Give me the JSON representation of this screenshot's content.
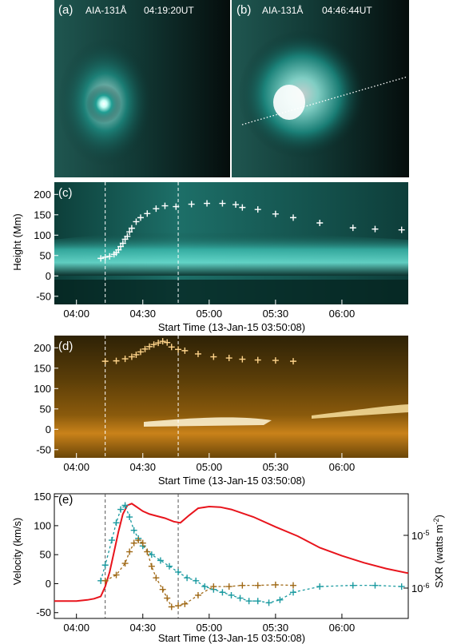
{
  "panel_a": {
    "letter": "(a)",
    "instrument": "AIA-131Å",
    "time": "04:19:20UT"
  },
  "panel_b": {
    "letter": "(b)",
    "instrument": "AIA-131Å",
    "time": "04:46:44UT"
  },
  "colors": {
    "aia131": "#38d6c8",
    "aia94": "#f2a23a",
    "red": "#e8141c",
    "teal": "#1a9aa0",
    "brown": "#a06a18"
  },
  "chart_data": [
    {
      "type": "scatter",
      "panel": "(c)",
      "ylabel": "Height (Mm)",
      "xlabel": "Start Time (13-Jan-15 03:50:08)",
      "xlim": [
        "03:50",
        "06:30"
      ],
      "ylim": [
        -70,
        230
      ],
      "yticks": [
        -50,
        0,
        50,
        100,
        150,
        200
      ],
      "xticks": [
        "04:00",
        "04:30",
        "05:00",
        "05:30",
        "06:00"
      ],
      "vlines": [
        "04:13",
        "04:46"
      ],
      "series": [
        {
          "x": [
            "04:11",
            "04:13",
            "04:15",
            "04:17",
            "04:18",
            "04:19",
            "04:20",
            "04:21",
            "04:22",
            "04:23",
            "04:24",
            "04:25",
            "04:27",
            "04:29",
            "04:32",
            "04:36",
            "04:40",
            "04:45",
            "04:52",
            "04:59",
            "05:06",
            "05:12",
            "05:15",
            "05:22",
            "05:30",
            "05:38",
            "05:50",
            "06:05",
            "06:15",
            "06:27"
          ],
          "y": [
            43,
            46,
            48,
            53,
            57,
            64,
            72,
            80,
            90,
            97,
            108,
            117,
            133,
            143,
            153,
            165,
            172,
            170,
            176,
            178,
            178,
            175,
            168,
            163,
            152,
            143,
            130,
            118,
            115,
            113
          ]
        }
      ]
    },
    {
      "type": "scatter",
      "panel": "(d)",
      "xlabel": "Start Time (13-Jan-15 03:50:08)",
      "xlim": [
        "03:50",
        "06:30"
      ],
      "ylim": [
        -70,
        230
      ],
      "yticks": [
        -50,
        0,
        50,
        100,
        150,
        200
      ],
      "xticks": [
        "04:00",
        "04:30",
        "05:00",
        "05:30",
        "06:00"
      ],
      "vlines": [
        "04:13",
        "04:46"
      ],
      "series": [
        {
          "x": [
            "04:13",
            "04:18",
            "04:22",
            "04:25",
            "04:27",
            "04:29",
            "04:31",
            "04:33",
            "04:35",
            "04:37",
            "04:39",
            "04:41",
            "04:43",
            "04:46",
            "04:49",
            "04:55",
            "05:02",
            "05:09",
            "05:15",
            "05:22",
            "05:30",
            "05:38"
          ],
          "y": [
            167,
            168,
            173,
            178,
            183,
            190,
            197,
            203,
            208,
            212,
            216,
            213,
            202,
            196,
            193,
            185,
            178,
            175,
            172,
            170,
            169,
            167
          ]
        }
      ]
    },
    {
      "type": "line",
      "panel": "(e)",
      "ylabel": "Velocity (km/s)",
      "y2label": "SXR (watts m",
      "y2label_sup": "-2",
      "y2label_end": ")",
      "xlabel": "Start Time (13-Jan-15 03:50:08)",
      "xlim": [
        "03:50",
        "06:30"
      ],
      "ylim": [
        -60,
        155
      ],
      "yticks": [
        -50,
        0,
        50,
        100,
        150
      ],
      "y2ticks": [
        {
          "base": "10",
          "exp": "-5"
        },
        {
          "base": "10",
          "exp": "-6"
        }
      ],
      "xticks": [
        "04:00",
        "04:30",
        "05:00",
        "05:30",
        "06:00"
      ],
      "vlines": [
        "04:13",
        "04:46"
      ],
      "series": [
        {
          "name": "",
          "x": [
            "03:50",
            "04:00",
            "04:05",
            "04:08",
            "04:11",
            "04:13",
            "04:15",
            "04:17",
            "04:19",
            "04:21",
            "04:23",
            "04:25",
            "04:27",
            "04:30",
            "04:33",
            "04:36",
            "04:40",
            "04:44",
            "04:47",
            "04:51",
            "04:55",
            "05:00",
            "05:05",
            "05:10",
            "05:20",
            "05:30",
            "05:40",
            "05:50",
            "06:00",
            "06:10",
            "06:20",
            "06:30"
          ],
          "y": [
            -30,
            -30,
            -28,
            -26,
            -22,
            -5,
            20,
            55,
            90,
            120,
            135,
            138,
            133,
            125,
            120,
            117,
            113,
            107,
            105,
            118,
            130,
            133,
            132,
            128,
            115,
            98,
            82,
            62,
            48,
            36,
            26,
            18
          ]
        },
        {
          "name": "",
          "x": [
            "04:11",
            "04:13",
            "04:16",
            "04:18",
            "04:20",
            "04:22",
            "04:24",
            "04:26",
            "04:28",
            "04:30",
            "04:34",
            "04:38",
            "04:42",
            "04:46",
            "04:50",
            "04:54",
            "04:58",
            "05:02",
            "05:06",
            "05:10",
            "05:14",
            "05:18",
            "05:22",
            "05:27",
            "05:32",
            "05:38",
            "05:50",
            "06:05",
            "06:15",
            "06:27"
          ],
          "y": [
            5,
            32,
            75,
            105,
            128,
            135,
            115,
            92,
            78,
            65,
            50,
            40,
            30,
            20,
            10,
            5,
            -5,
            -10,
            -15,
            -20,
            -25,
            -30,
            -30,
            -33,
            -28,
            -15,
            -5,
            -3,
            -3,
            -5
          ]
        },
        {
          "name": "",
          "x": [
            "04:13",
            "04:18",
            "04:22",
            "04:24",
            "04:26",
            "04:28",
            "04:30",
            "04:32",
            "04:34",
            "04:36",
            "04:39",
            "04:41",
            "04:43",
            "04:46",
            "04:49",
            "04:55",
            "05:02",
            "05:09",
            "05:15",
            "05:22",
            "05:30",
            "05:38"
          ],
          "y": [
            5,
            15,
            35,
            55,
            70,
            75,
            70,
            55,
            30,
            10,
            -10,
            -25,
            -40,
            -38,
            -35,
            -20,
            -5,
            -5,
            -3,
            -3,
            -2,
            -3
          ]
        }
      ]
    }
  ]
}
